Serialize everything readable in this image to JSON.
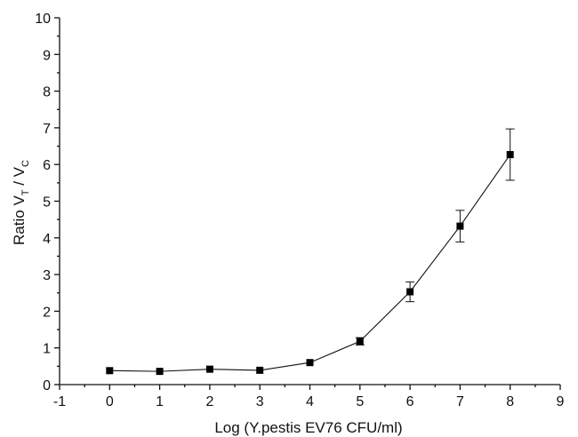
{
  "chart_data": {
    "type": "line",
    "xlabel": "Log (Y.pestis EV76 CFU/ml)",
    "ylabel": {
      "prefix": "Ratio V",
      "sub1": "T",
      "middle": " / V",
      "sub2": "C"
    },
    "xlim": [
      -1,
      9
    ],
    "ylim": [
      0,
      10
    ],
    "x_ticks": [
      -1,
      0,
      1,
      2,
      3,
      4,
      5,
      6,
      7,
      8,
      9
    ],
    "y_ticks": [
      0,
      1,
      2,
      3,
      4,
      5,
      6,
      7,
      8,
      9,
      10
    ],
    "grid": false,
    "legend": "none",
    "marker": "square",
    "series": [
      {
        "x": [
          0,
          1,
          2,
          3,
          4,
          5,
          6,
          7,
          8
        ],
        "y": [
          0.38,
          0.36,
          0.42,
          0.39,
          0.6,
          1.18,
          2.53,
          4.32,
          6.27
        ],
        "error": [
          0.02,
          0.02,
          0.02,
          0.02,
          0.03,
          0.1,
          0.27,
          0.43,
          0.7
        ]
      }
    ],
    "colors": {
      "line": "#111111",
      "marker": "#000000"
    }
  }
}
